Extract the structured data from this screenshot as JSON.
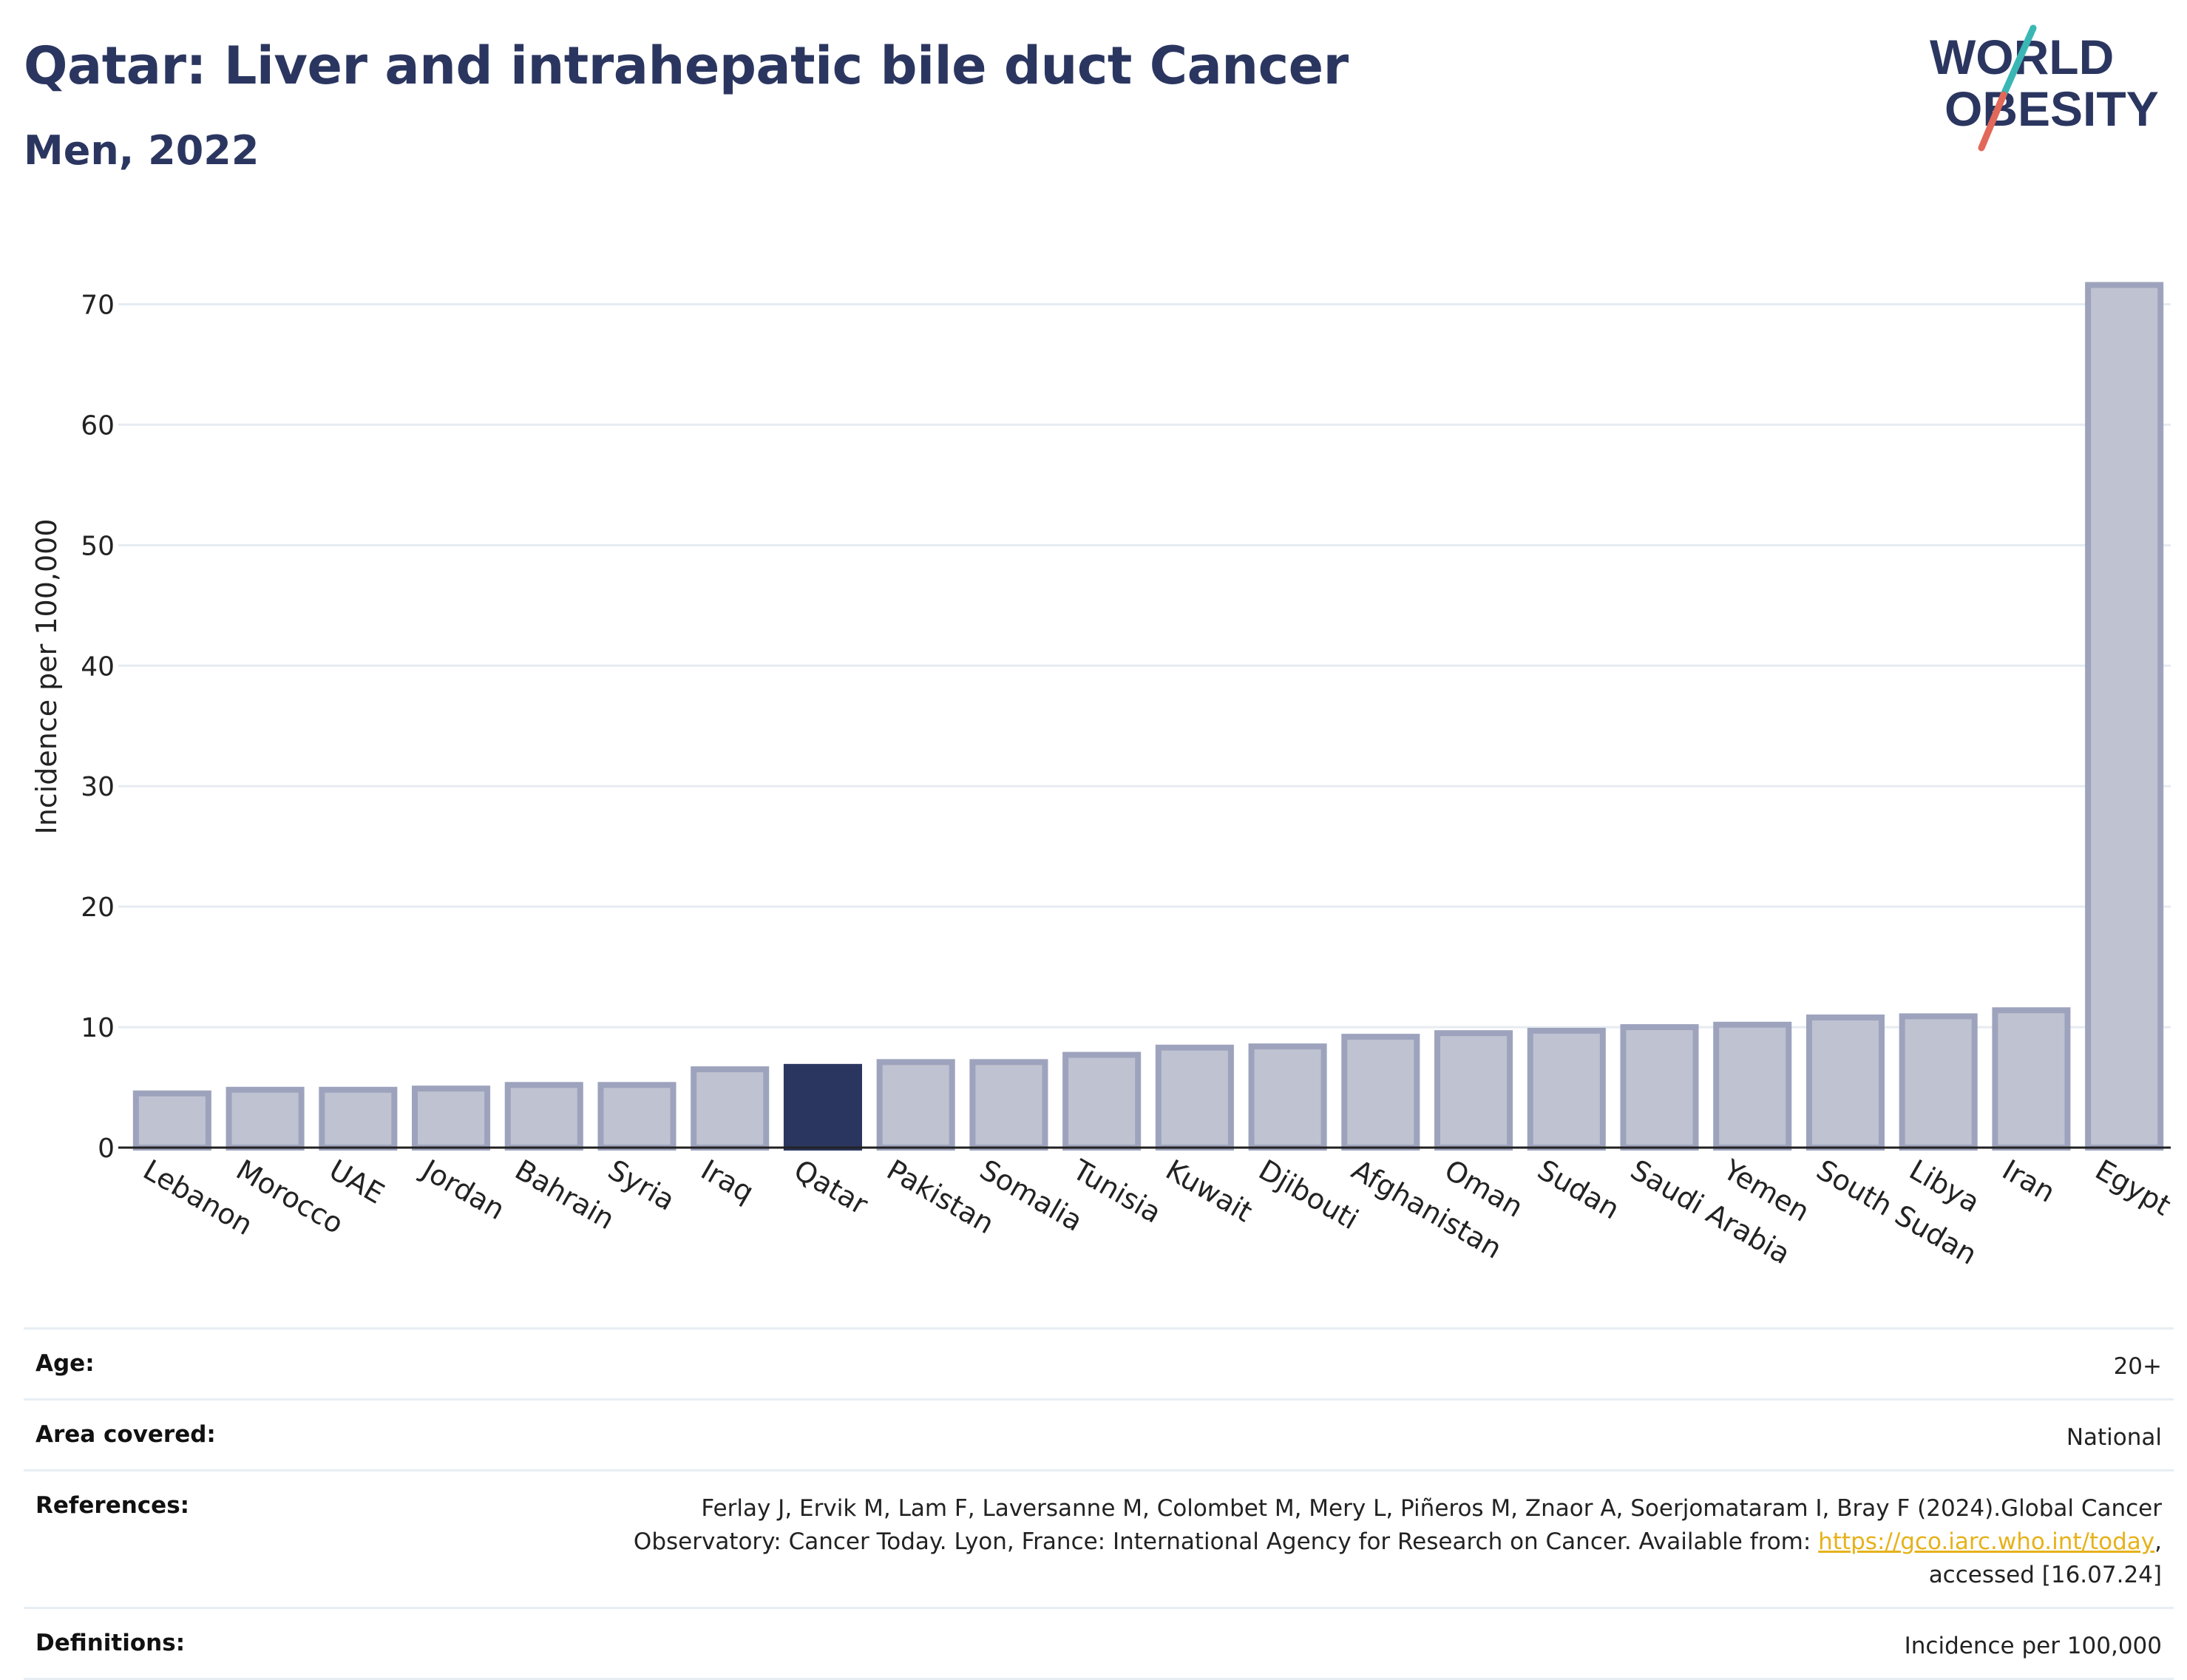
{
  "header": {
    "title": "Qatar: Liver and intrahepatic bile duct Cancer",
    "subtitle": "Men, 2022"
  },
  "logo": {
    "line1": "WORLD",
    "line2": "OBESITY",
    "colors": {
      "text": "#2b3660",
      "slash_top": "#3ab7b5",
      "slash_bottom": "#e2685a"
    }
  },
  "chart_data": {
    "type": "bar",
    "title": "Qatar: Liver and intrahepatic bile duct Cancer",
    "subtitle": "Men, 2022",
    "ylabel": "Incidence per 100,000",
    "xlabel": "",
    "ylim": [
      0,
      75
    ],
    "yticks": [
      0,
      10,
      20,
      30,
      40,
      50,
      60,
      70
    ],
    "grid": true,
    "highlight": "Qatar",
    "colors": {
      "bar": "#bfc2d0",
      "bar_edge": "#9ea3bd",
      "highlight": "#2b3660"
    },
    "categories": [
      "Lebanon",
      "Morocco",
      "UAE",
      "Jordan",
      "Bahrain",
      "Syria",
      "Iraq",
      "Qatar",
      "Pakistan",
      "Somalia",
      "Tunisia",
      "Kuwait",
      "Djibouti",
      "Afghanistan",
      "Oman",
      "Sudan",
      "Saudi Arabia",
      "Yemen",
      "South Sudan",
      "Libya",
      "Iran",
      "Egypt"
    ],
    "values": [
      4.5,
      4.8,
      4.8,
      4.9,
      5.2,
      5.2,
      6.5,
      6.7,
      7.1,
      7.1,
      7.7,
      8.3,
      8.4,
      9.2,
      9.5,
      9.7,
      10.0,
      10.2,
      10.8,
      10.9,
      11.4,
      71.6
    ]
  },
  "meta": {
    "age": {
      "label": "Age:",
      "value": "20+"
    },
    "area": {
      "label": "Area covered:",
      "value": "National"
    },
    "references": {
      "label": "References:",
      "text1": "Ferlay J, Ervik M, Lam F, Laversanne M, Colombet M, Mery L, Piñeros M, Znaor A, Soerjomataram I, Bray F (2024).Global Cancer",
      "text2": "Observatory: Cancer Today. Lyon, France: International Agency for Research on Cancer. Available from: ",
      "link": "https://gco.iarc.who.int/today",
      "text3": ",",
      "text4": "accessed [16.07.24]"
    },
    "definitions": {
      "label": "Definitions:",
      "value": "Incidence per 100,000"
    }
  }
}
